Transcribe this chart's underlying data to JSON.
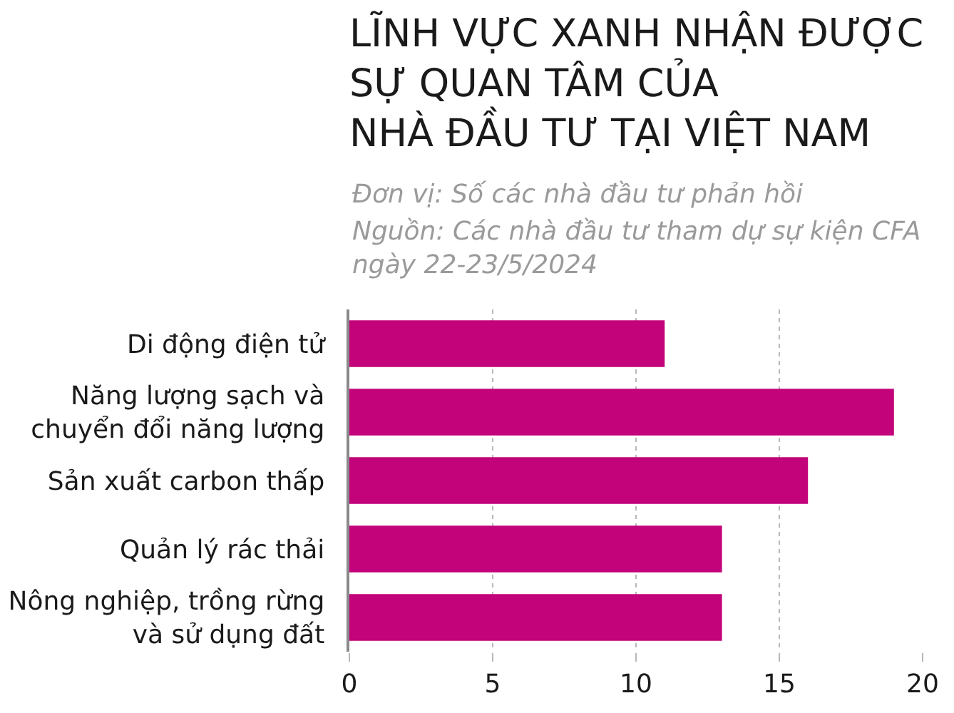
{
  "chart_data": {
    "type": "bar",
    "orientation": "horizontal",
    "title": "LĨNH VỰC XANH NHẬN ĐƯỢC\nSỰ QUAN TÂM CỦA\nNHÀ ĐẦU TƯ TẠI VIỆT NAM",
    "subtitle": "Đơn vị: Số các nhà đầu tư phản hồi",
    "annotations": [
      "Nguồn: Các nhà đầu tư tham dự sự kiện CFA\nngày 22-23/5/2024"
    ],
    "categories": [
      "Di động điện tử",
      "Năng lượng sạch và\nchuyển đổi năng lượng",
      "Sản xuất carbon thấp",
      "Quản lý rác thải",
      "Nông nghiệp, trồng rừng\nvà sử dụng đất"
    ],
    "values": [
      11,
      19,
      16,
      13,
      13
    ],
    "color": "#c2037a",
    "xlim": [
      0,
      20
    ],
    "xticks": [
      0,
      5,
      10,
      15,
      20
    ],
    "grid": "x"
  }
}
